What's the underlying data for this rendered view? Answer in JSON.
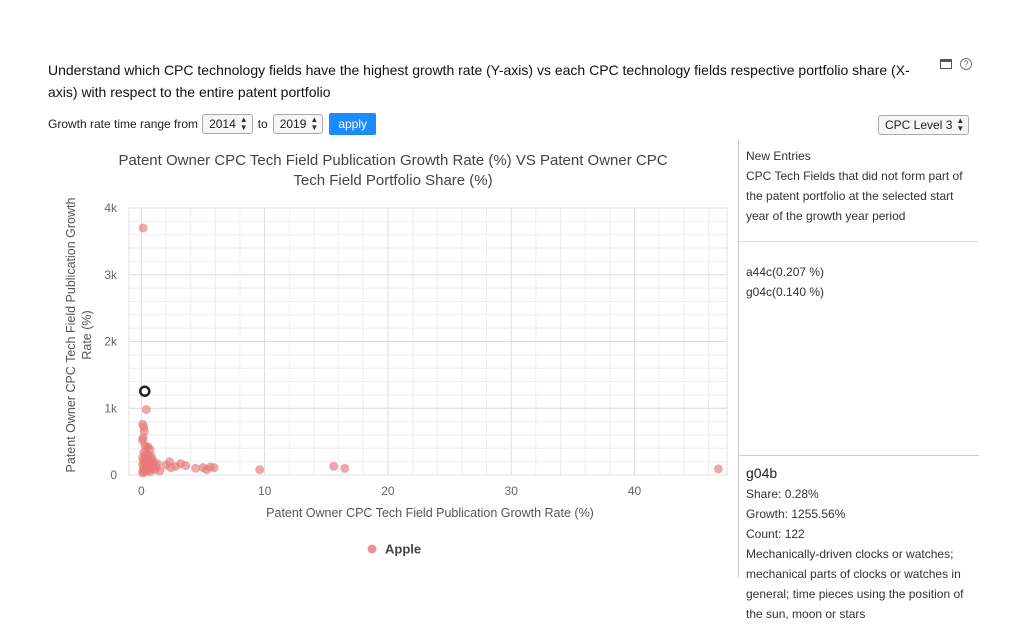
{
  "header": {
    "description": "Understand which CPC technology fields have the highest growth rate (Y-axis) vs each CPC technology fields respective portfolio share (X-axis) with respect to the entire patent portfolio",
    "icons": [
      "window-icon",
      "help-icon"
    ]
  },
  "controls": {
    "range_label": "Growth rate time range from",
    "from_value": "2014",
    "to_label": "to",
    "to_value": "2019",
    "apply_label": "apply",
    "level_value": "CPC Level 3"
  },
  "chart_data": {
    "type": "scatter",
    "title": "Patent Owner CPC Tech Field Publication Growth Rate (%) VS Patent Owner CPC Tech Field Portfolio Share (%)",
    "xlabel": "Patent Owner CPC Tech Field Publication Growth Rate (%)",
    "ylabel": "Patent Owner CPC Tech Field Publication Growth Rate (%)",
    "xlim": [
      -1,
      47.5
    ],
    "ylim": [
      0,
      4000
    ],
    "x_ticks": [
      0,
      10,
      20,
      30,
      40
    ],
    "y_ticks": [
      0,
      1000,
      2000,
      3000,
      4000
    ],
    "y_tick_labels": [
      "0",
      "1k",
      "2k",
      "3k",
      "4k"
    ],
    "grid": true,
    "legend": "bottom-center",
    "color": "#e8787a",
    "highlight_color": "#222222",
    "series": [
      {
        "name": "Apple",
        "points": [
          [
            0.15,
            3700
          ],
          [
            0.28,
            1255.56
          ],
          [
            0.4,
            980
          ],
          [
            0.1,
            760
          ],
          [
            0.2,
            720
          ],
          [
            0.25,
            650
          ],
          [
            0.15,
            560
          ],
          [
            0.1,
            520
          ],
          [
            0.3,
            440
          ],
          [
            0.45,
            400
          ],
          [
            0.55,
            420
          ],
          [
            0.7,
            380
          ],
          [
            0.2,
            340
          ],
          [
            0.35,
            300
          ],
          [
            0.6,
            300
          ],
          [
            0.8,
            280
          ],
          [
            0.1,
            260
          ],
          [
            0.3,
            250
          ],
          [
            0.5,
            240
          ],
          [
            0.9,
            230
          ],
          [
            0.2,
            210
          ],
          [
            0.4,
            200
          ],
          [
            0.7,
            190
          ],
          [
            1.0,
            180
          ],
          [
            1.3,
            170
          ],
          [
            0.1,
            160
          ],
          [
            0.3,
            150
          ],
          [
            0.6,
            140
          ],
          [
            0.9,
            130
          ],
          [
            1.2,
            120
          ],
          [
            0.2,
            110
          ],
          [
            0.5,
            100
          ],
          [
            0.8,
            90
          ],
          [
            1.1,
            80
          ],
          [
            0.15,
            70
          ],
          [
            0.4,
            60
          ],
          [
            0.7,
            50
          ],
          [
            0.25,
            40
          ],
          [
            0.1,
            30
          ],
          [
            1.5,
            60
          ],
          [
            2.0,
            150
          ],
          [
            2.4,
            110
          ],
          [
            2.3,
            200
          ],
          [
            2.8,
            130
          ],
          [
            3.2,
            170
          ],
          [
            3.6,
            140
          ],
          [
            4.4,
            100
          ],
          [
            5.0,
            110
          ],
          [
            5.6,
            120
          ],
          [
            5.9,
            110
          ],
          [
            5.3,
            80
          ],
          [
            9.6,
            80
          ],
          [
            15.6,
            130
          ],
          [
            16.5,
            100
          ],
          [
            46.8,
            90
          ]
        ]
      }
    ],
    "highlight": {
      "x": 0.28,
      "y": 1255.56
    }
  },
  "panel": {
    "new_entries_title": "New Entries",
    "new_entries_desc": "CPC Tech Fields that did not form part of the patent portfolio at the selected start year of the growth year period",
    "entries": [
      "a44c(0.207 %)",
      "g04c(0.140 %)"
    ],
    "detail": {
      "code": "g04b",
      "share": "Share: 0.28%",
      "growth": "Growth: 1255.56%",
      "count": "Count: 122",
      "description": "Mechanically-driven clocks or watches; mechanical parts of clocks or watches in general; time pieces using the position of the sun, moon or stars"
    }
  }
}
